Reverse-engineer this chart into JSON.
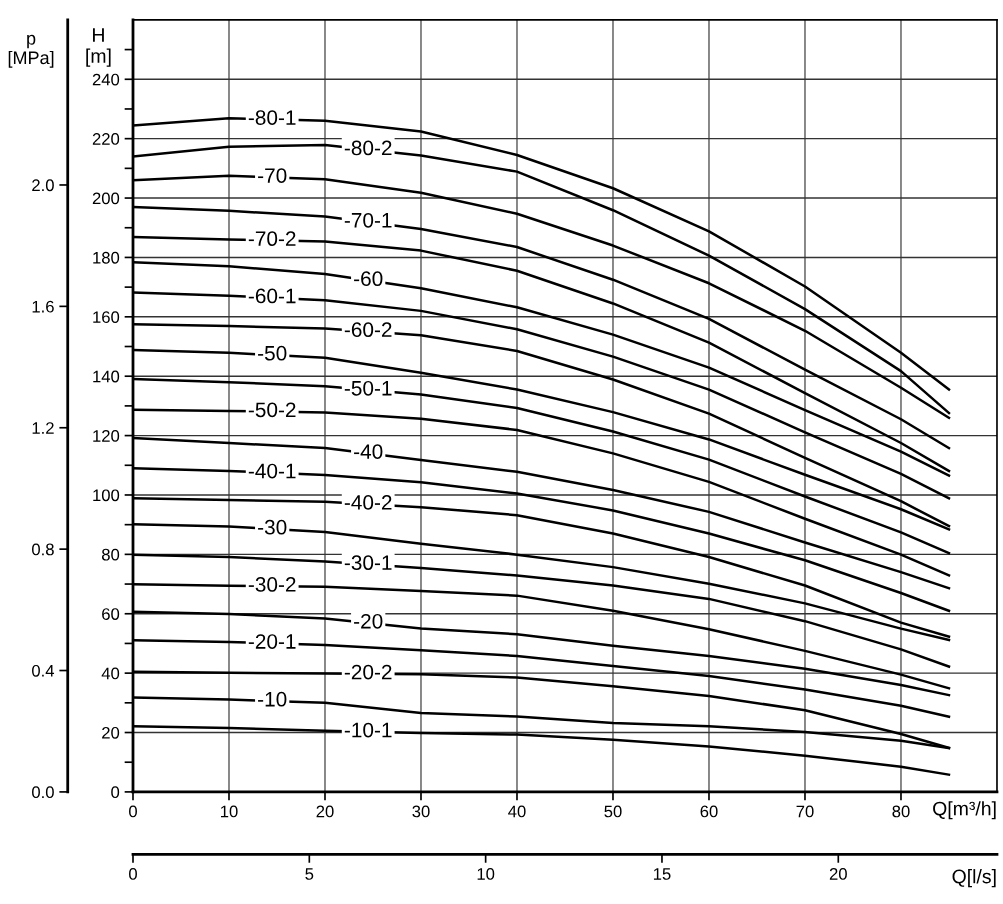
{
  "chart_data": {
    "type": "line",
    "xlabel": "Q[m³/h]",
    "ylabel": "H\n[m]",
    "y2label": "p\n[MPa]",
    "x2label": "Q[l/s]",
    "x": [
      0,
      10,
      20,
      30,
      40,
      50,
      60,
      70,
      80,
      85
    ],
    "xlim": [
      0,
      90
    ],
    "xticks": [
      0,
      10,
      20,
      30,
      40,
      50,
      60,
      70,
      80
    ],
    "ylim": [
      0,
      260
    ],
    "yticks": [
      0,
      {
        "value": 10,
        "label": null
      },
      20,
      {
        "value": 30,
        "label": null
      },
      40,
      {
        "value": 50,
        "label": null
      },
      60,
      {
        "value": 70,
        "label": null
      },
      80,
      {
        "value": 90,
        "label": null
      },
      100,
      {
        "value": 110,
        "label": null
      },
      120,
      {
        "value": 130,
        "label": null
      },
      140,
      {
        "value": 150,
        "label": null
      },
      160,
      {
        "value": 170,
        "label": null
      },
      180,
      {
        "value": 190,
        "label": null
      },
      200,
      {
        "value": 210,
        "label": null
      },
      220,
      {
        "value": 230,
        "label": null
      },
      240,
      {
        "value": 250,
        "label": null
      }
    ],
    "y2lim": [
      0,
      2.544
    ],
    "y2ticks": [
      {
        "value": 0,
        "label": "0.0"
      },
      0.4,
      0.8,
      1.2,
      1.6,
      {
        "value": 2,
        "label": "2.0"
      }
    ],
    "x2lim": [
      0,
      24.5
    ],
    "x2ticks": [
      0,
      5,
      10,
      15,
      20
    ],
    "grid": true,
    "marker": "none",
    "line_style": "solid",
    "series": [
      {
        "name": "-80-1",
        "color": "#000000",
        "values": [
          224.4,
          226.9,
          226,
          222.4,
          214.5,
          203.3,
          188.8,
          170.2,
          147.9,
          135.5
        ]
      },
      {
        "name": "-80-2",
        "color": "#000000",
        "values": [
          214,
          217.3,
          217.9,
          214.3,
          208.9,
          195.9,
          180.6,
          162.6,
          141.7,
          127.6
        ]
      },
      {
        "name": "-70",
        "color": "#000000",
        "values": [
          206,
          207.5,
          206.3,
          201.8,
          194.7,
          184,
          171.3,
          155.3,
          136.1,
          126
        ]
      },
      {
        "name": "-70-1",
        "color": "#000000",
        "values": [
          197,
          195.7,
          193.8,
          189.6,
          183.5,
          172.5,
          159.3,
          142.2,
          125.5,
          115.8
        ]
      },
      {
        "name": "-70-2",
        "color": "#000000",
        "values": [
          186.9,
          186,
          185.4,
          182.3,
          175.5,
          164.5,
          151.3,
          134.3,
          117.5,
          108.1
        ]
      },
      {
        "name": "-60",
        "color": "#000000",
        "values": [
          178.4,
          177,
          174.4,
          169.6,
          163.2,
          154,
          142.9,
          128.6,
          114.6,
          106.5
        ]
      },
      {
        "name": "-60-1",
        "color": "#000000",
        "values": [
          168.2,
          167.1,
          165.6,
          162,
          155.8,
          146.6,
          135.5,
          121.1,
          107.1,
          98.9
        ]
      },
      {
        "name": "-60-2",
        "color": "#000000",
        "values": [
          157.5,
          156.9,
          156.1,
          153.8,
          148.5,
          138.9,
          127.4,
          112.5,
          97.9,
          89.5
        ]
      },
      {
        "name": "-50",
        "color": "#000000",
        "values": [
          148.8,
          147.9,
          146.2,
          141.2,
          135.5,
          127.9,
          118.7,
          106.8,
          95.2,
          88.4
        ]
      },
      {
        "name": "-50-1",
        "color": "#000000",
        "values": [
          139.1,
          138,
          136.6,
          133.8,
          129.3,
          121.4,
          111.9,
          99.5,
          87.4,
          80.4
        ]
      },
      {
        "name": "-50-2",
        "color": "#000000",
        "values": [
          128.7,
          128.3,
          127.8,
          125.7,
          121.9,
          114,
          104.4,
          92,
          79.9,
          72.9
        ]
      },
      {
        "name": "-40",
        "color": "#000000",
        "values": [
          119.2,
          117.5,
          115.8,
          111.8,
          107.8,
          101.7,
          94.3,
          84,
          74,
          68.6
        ]
      },
      {
        "name": "-40-1",
        "color": "#000000",
        "values": [
          109,
          108.1,
          106.7,
          104.3,
          100.5,
          94.8,
          87,
          78,
          67,
          61
        ]
      },
      {
        "name": "-40-2",
        "color": "#000000",
        "values": [
          98.9,
          98.3,
          97.7,
          95.9,
          93.2,
          87,
          79.1,
          69.5,
          57,
          52.3
        ]
      },
      {
        "name": "-30",
        "color": "#000000",
        "values": [
          90.1,
          89.4,
          87.5,
          83.6,
          79.9,
          75.7,
          70.1,
          63.5,
          55,
          51.2
        ]
      },
      {
        "name": "-30-1",
        "color": "#000000",
        "values": [
          79.9,
          79.1,
          77.6,
          75.4,
          72.9,
          69.5,
          65,
          57.5,
          48,
          42.2
        ]
      },
      {
        "name": "-30-2",
        "color": "#000000",
        "values": [
          69.9,
          69.4,
          69.1,
          67.7,
          66.1,
          61,
          54.8,
          47.5,
          39.5,
          34.9
        ]
      },
      {
        "name": "-20",
        "color": "#000000",
        "values": [
          60.7,
          59.9,
          58.4,
          55,
          53.1,
          49.2,
          45.8,
          41.5,
          36,
          32.6
        ]
      },
      {
        "name": "-20-1",
        "color": "#000000",
        "values": [
          51.1,
          50.5,
          49.5,
          47.7,
          45.8,
          42.4,
          39,
          34.5,
          29,
          25.3
        ]
      },
      {
        "name": "-20-2",
        "color": "#000000",
        "values": [
          40.5,
          40.1,
          39.9,
          39.6,
          38.5,
          35.6,
          32.3,
          27.5,
          19.5,
          14.8
        ]
      },
      {
        "name": "-10",
        "color": "#000000",
        "values": [
          31.8,
          31.1,
          30,
          26.6,
          25.4,
          23.2,
          22.1,
          20.2,
          17.2,
          14.8
        ]
      },
      {
        "name": "-10-1",
        "color": "#000000",
        "values": [
          22.1,
          21.5,
          20.6,
          19.8,
          19.3,
          17.6,
          15.3,
          12.2,
          8.5,
          5.8
        ]
      }
    ]
  }
}
